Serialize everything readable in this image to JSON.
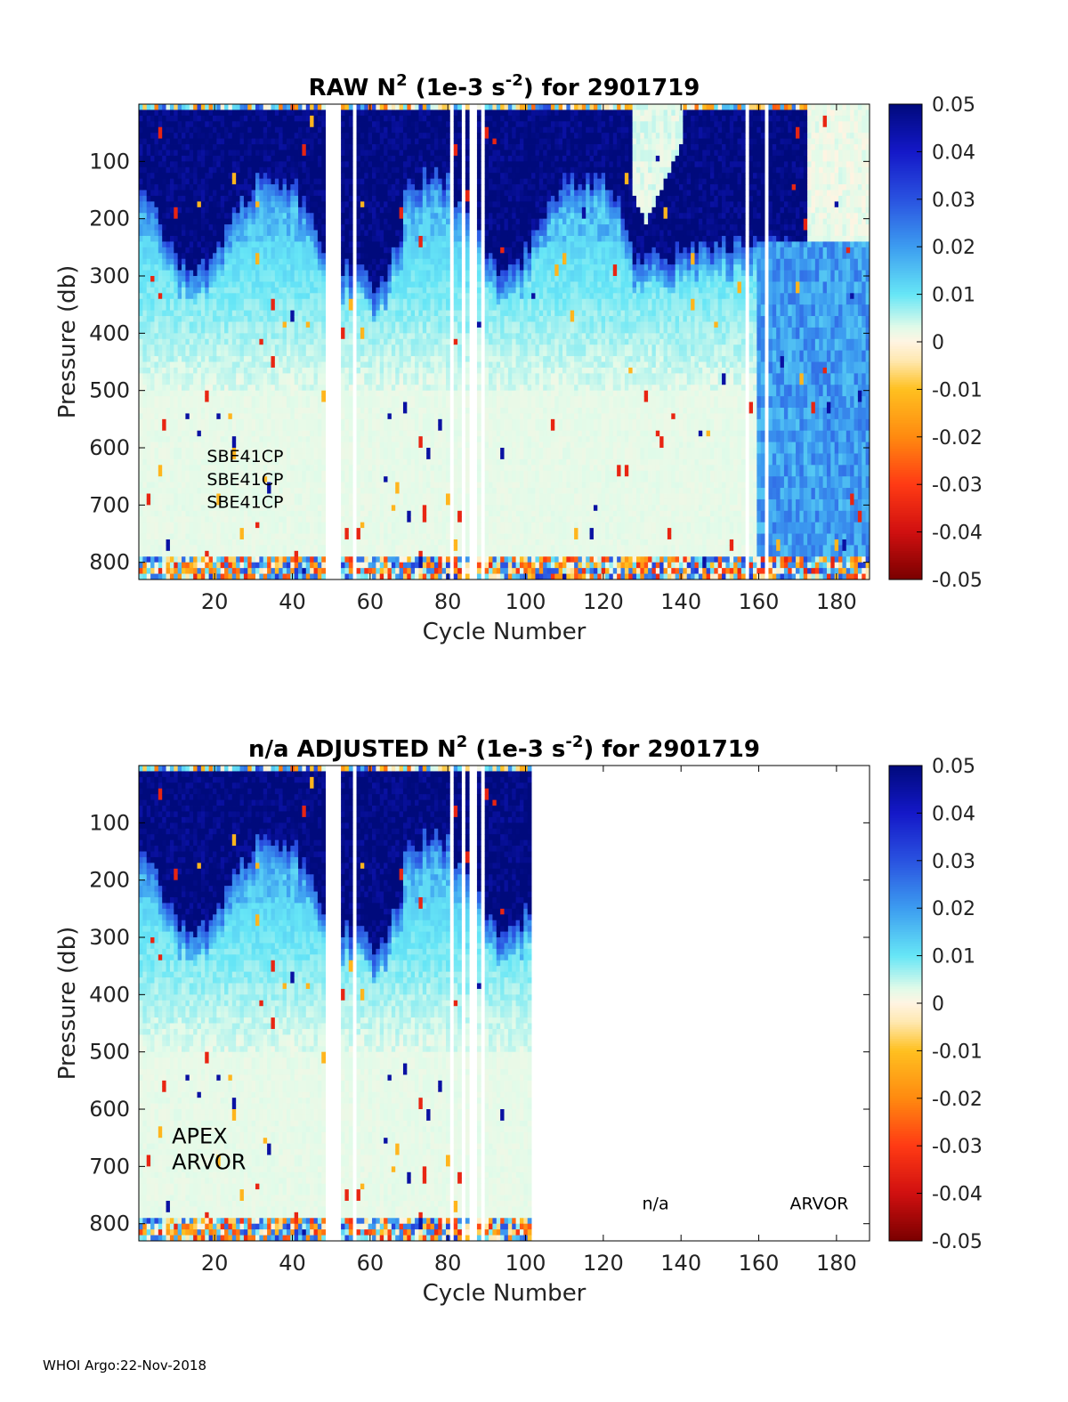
{
  "footer": "WHOI Argo:22-Nov-2018",
  "colormap": {
    "stops": [
      [
        -0.05,
        "#7a0000"
      ],
      [
        -0.04,
        "#d01010"
      ],
      [
        -0.03,
        "#ff3a14"
      ],
      [
        -0.02,
        "#ff8a10"
      ],
      [
        -0.01,
        "#ffc020"
      ],
      [
        -0.004,
        "#ffe8b0"
      ],
      [
        0.0,
        "#fff4e2"
      ],
      [
        0.003,
        "#e2fbe9"
      ],
      [
        0.01,
        "#66e6f6"
      ],
      [
        0.02,
        "#3c9cf0"
      ],
      [
        0.03,
        "#2a52e0"
      ],
      [
        0.04,
        "#1418c8"
      ],
      [
        0.05,
        "#000a7c"
      ]
    ],
    "missing_color": "#ffffff"
  },
  "chart_data": [
    {
      "type": "heatmap",
      "title": {
        "prefix": "RAW N",
        "sup1": "2",
        "mid": " (1e-3 s",
        "sup2": "-2",
        "suffix": ") for 2901719"
      },
      "xlabel": "Cycle Number",
      "ylabel": "Pressure (db)",
      "xlim": [
        1,
        188
      ],
      "ylim": [
        830,
        0
      ],
      "xticks": [
        20,
        40,
        60,
        80,
        100,
        120,
        140,
        160,
        180
      ],
      "yticks": [
        100,
        200,
        300,
        400,
        500,
        600,
        700,
        800
      ],
      "colorbar": {
        "ticks": [
          0.05,
          0.04,
          0.03,
          0.02,
          0.01,
          0,
          -0.01,
          -0.02,
          -0.03,
          -0.04,
          -0.05
        ]
      },
      "data_cycle_max": 188,
      "annotations": [
        {
          "text": "SBE41CP",
          "x": 18,
          "y": 625
        },
        {
          "text": "SBE41CP",
          "x": 18,
          "y": 665
        },
        {
          "text": "SBE41CP",
          "x": 18,
          "y": 705
        }
      ]
    },
    {
      "type": "heatmap",
      "title": {
        "prefix": "n/a  ADJUSTED N",
        "sup1": "2",
        "mid": " (1e-3 s",
        "sup2": "-2",
        "suffix": ") for 2901719"
      },
      "xlabel": "Cycle Number",
      "ylabel": "Pressure (db)",
      "xlim": [
        1,
        188
      ],
      "ylim": [
        830,
        0
      ],
      "xticks": [
        20,
        40,
        60,
        80,
        100,
        120,
        140,
        160,
        180
      ],
      "yticks": [
        100,
        200,
        300,
        400,
        500,
        600,
        700,
        800
      ],
      "colorbar": {
        "ticks": [
          0.05,
          0.04,
          0.03,
          0.02,
          0.01,
          0,
          -0.01,
          -0.02,
          -0.03,
          -0.04,
          -0.05
        ]
      },
      "data_cycle_max": 101,
      "annotations": [
        {
          "text": "APEX",
          "x": 9,
          "y": 660,
          "large": true
        },
        {
          "text": "ARVOR",
          "x": 9,
          "y": 705,
          "large": true
        },
        {
          "text": "n/a",
          "x": 130,
          "y": 775
        },
        {
          "text": "ARVOR",
          "x": 168,
          "y": 775
        }
      ]
    }
  ]
}
